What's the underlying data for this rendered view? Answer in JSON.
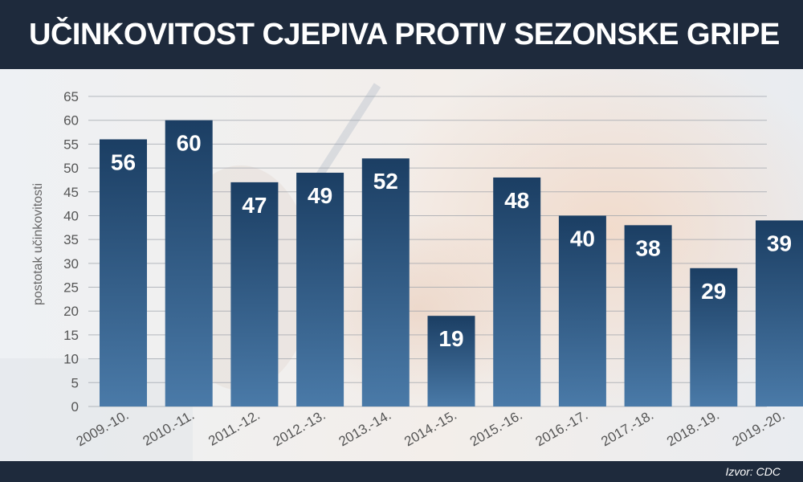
{
  "header": {
    "title": "UČINKOVITOST CJEPIVA PROTIV SEZONSKE GRIPE"
  },
  "footer": {
    "source": "Izvor: CDC"
  },
  "colors": {
    "header_bg": "#1e2a3c",
    "bar_top": "#1b3e63",
    "bar_bottom": "#4a7aa8",
    "grid": "#9aa0a8",
    "tick_text": "#555555",
    "label_text": "#ffffff"
  },
  "chart_data": {
    "type": "bar",
    "title": "UČINKOVITOST CJEPIVA PROTIV SEZONSKE GRIPE",
    "xlabel": "",
    "ylabel": "postotak učinkovitosti",
    "categories": [
      "2009.-10.",
      "2010.-11.",
      "2011.-12.",
      "2012.-13.",
      "2013.-14.",
      "2014.-15.",
      "2015.-16.",
      "2016.-17.",
      "2017.-18.",
      "2018.-19.",
      "2019.-20."
    ],
    "values": [
      56,
      60,
      47,
      49,
      52,
      19,
      48,
      40,
      38,
      29,
      39
    ],
    "data_labels": [
      "56",
      "60",
      "47",
      "49",
      "52",
      "19",
      "48",
      "40",
      "38",
      "29",
      "39"
    ],
    "ylim": [
      0,
      65
    ],
    "yticks": [
      0,
      5,
      10,
      15,
      20,
      25,
      30,
      35,
      40,
      45,
      50,
      55,
      60,
      65
    ],
    "grid": true,
    "legend": "none"
  }
}
